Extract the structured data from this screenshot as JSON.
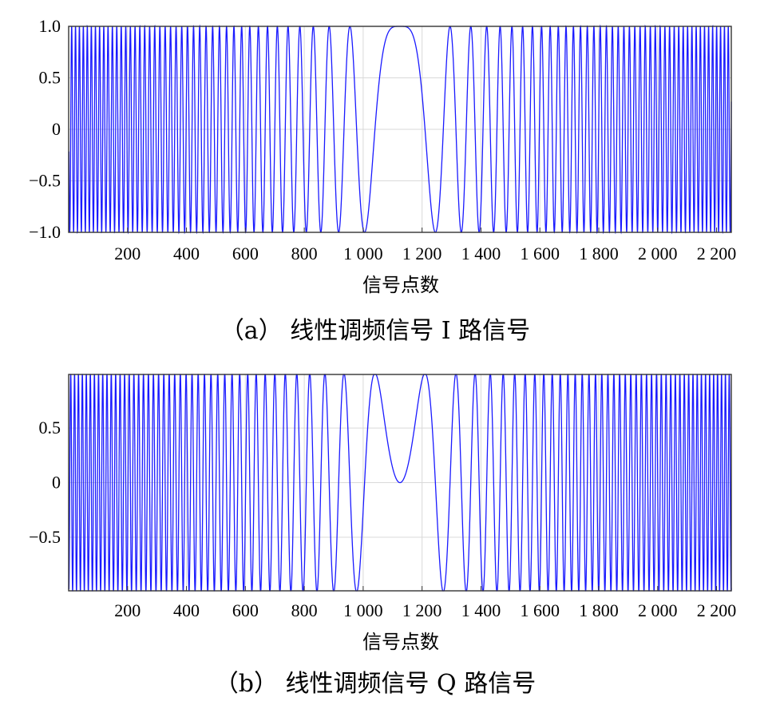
{
  "chart_data": [
    {
      "type": "line",
      "caption": "（a） 线性调频信号 I 路信号",
      "xlabel": "信号点数",
      "ylabel": "",
      "xlim": [
        0,
        2250
      ],
      "ylim": [
        -1.0,
        1.0
      ],
      "x_ticks": [
        200,
        400,
        600,
        800,
        1000,
        1200,
        1400,
        1600,
        1800,
        2000,
        2200
      ],
      "x_tick_labels": [
        "200",
        "400",
        "600",
        "800",
        "1 000",
        "1 200",
        "1 400",
        "1 600",
        "1 800",
        "2 000",
        "2 200"
      ],
      "y_ticks": [
        1.0,
        0.5,
        0,
        -0.5,
        -1.0
      ],
      "y_tick_labels": [
        "1.0",
        "0.5",
        "0",
        "−0.5",
        "−1.0"
      ],
      "grid": true,
      "series": [
        {
          "component": "I",
          "function": "cos",
          "color": "#1a1aff",
          "center_index": 1125,
          "peak_value": 1.0,
          "first_zeros_near": [
            1040,
            1210
          ],
          "first_minima_near": [
            1000,
            1250
          ],
          "x_range": [
            1,
            2250
          ]
        }
      ]
    },
    {
      "type": "line",
      "caption": "（b） 线性调频信号 Q 路信号",
      "xlabel": "信号点数",
      "ylabel": "",
      "xlim": [
        0,
        2250
      ],
      "ylim": [
        -1.0,
        1.0
      ],
      "x_ticks": [
        200,
        400,
        600,
        800,
        1000,
        1200,
        1400,
        1600,
        1800,
        2000,
        2200
      ],
      "x_tick_labels": [
        "200",
        "400",
        "600",
        "800",
        "1 000",
        "1 200",
        "1 400",
        "1 600",
        "1 800",
        "2 000",
        "2 200"
      ],
      "y_ticks": [
        0.5,
        0,
        -0.5
      ],
      "y_tick_labels": [
        "0.5",
        "0",
        "−0.5"
      ],
      "grid": true,
      "series": [
        {
          "component": "Q",
          "function": "sin",
          "color": "#1a1aff",
          "center_index": 1125,
          "center_value": 0,
          "first_maxima_near": [
            1040,
            1210
          ],
          "x_range": [
            1,
            2250
          ]
        }
      ]
    }
  ]
}
